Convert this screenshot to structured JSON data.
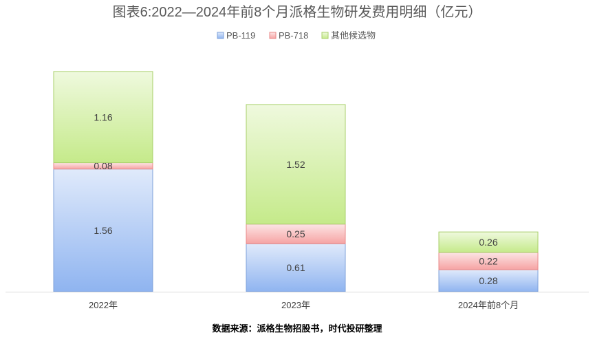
{
  "chart_data": {
    "type": "bar",
    "stacked": true,
    "title": "图表6:2022—2024年前8个月派格生物研发费用明细（亿元）",
    "categories": [
      "2022年",
      "2023年",
      "2024年前8个月"
    ],
    "series": [
      {
        "name": "PB-119",
        "values": [
          1.56,
          0.61,
          0.28
        ],
        "color": "#8fb4f0"
      },
      {
        "name": "PB-718",
        "values": [
          0.08,
          0.25,
          0.22
        ],
        "color": "#f6a3a3"
      },
      {
        "name": "其他候选物",
        "values": [
          1.16,
          1.52,
          0.26
        ],
        "color": "#c5ea8a"
      }
    ],
    "data_labels": [
      [
        "1.56",
        "0.61",
        "0.28"
      ],
      [
        "0.08",
        "0.25",
        "0.22"
      ],
      [
        "1.16",
        "1.52",
        "0.26"
      ]
    ],
    "legend_position": "top",
    "gridlines": false,
    "ylim": [
      0,
      3.0
    ]
  },
  "source_note": "数据来源：派格生物招股书，时代投研整理"
}
